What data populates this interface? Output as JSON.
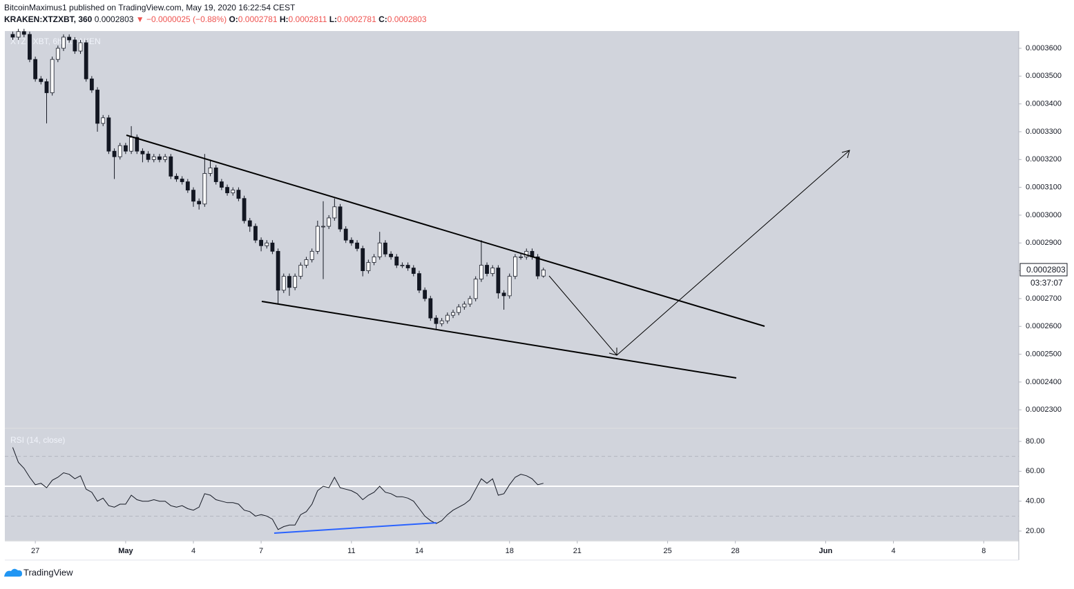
{
  "header": {
    "publisher_line": "BitcoinMaximus1 published on TradingView.com, May 19, 2020 16:22:54 CEST",
    "symbol": "KRAKEN:XTZXBT, 360",
    "last": "0.0002803",
    "change": "▼ −0.0000025 (−0.88%)",
    "ohlc": [
      {
        "label": "O:",
        "value": "0.0002781"
      },
      {
        "label": "H:",
        "value": "0.0002811"
      },
      {
        "label": "L:",
        "value": "0.0002781"
      },
      {
        "label": "C:",
        "value": "0.0002803"
      }
    ],
    "last_price_tag": "0.0002803",
    "countdown": "03:37:07"
  },
  "brand": "TradingView",
  "chart_data": [
    {
      "type": "candlestick",
      "label": "XTZ / XBT, 6h, KRAKEN",
      "up_color": "#ffffff",
      "down_color": "#131722",
      "xlim": [
        -1.35,
        43.55
      ],
      "ylim": [
        0.0002236,
        0.0003662
      ],
      "yticks": [
        {
          "value": 0.00036,
          "label": "0.0003600"
        },
        {
          "value": 0.00035,
          "label": "0.0003500"
        },
        {
          "value": 0.00034,
          "label": "0.0003400"
        },
        {
          "value": 0.00033,
          "label": "0.0003300"
        },
        {
          "value": 0.00032,
          "label": "0.0003200"
        },
        {
          "value": 0.00031,
          "label": "0.0003100"
        },
        {
          "value": 0.0003,
          "label": "0.0003000"
        },
        {
          "value": 0.00029,
          "label": "0.0002900"
        },
        {
          "value": 0.00028,
          "label": "0.0002800"
        },
        {
          "value": 0.00027,
          "label": "0.0002700"
        },
        {
          "value": 0.00026,
          "label": "0.0002600"
        },
        {
          "value": 0.00025,
          "label": "0.0002500"
        },
        {
          "value": 0.00024,
          "label": "0.0002400"
        },
        {
          "value": 0.00023,
          "label": "0.0002300"
        }
      ],
      "x": [
        -1,
        -0.75,
        -0.5,
        -0.25,
        0,
        0.25,
        0.5,
        0.75,
        1,
        1.25,
        1.5,
        1.75,
        2,
        2.25,
        2.5,
        2.75,
        3,
        3.25,
        3.5,
        3.75,
        4,
        4.25,
        4.5,
        4.75,
        5,
        5.25,
        5.5,
        5.75,
        6,
        6.25,
        6.5,
        6.75,
        7,
        7.25,
        7.5,
        7.75,
        8,
        8.25,
        8.5,
        8.75,
        9,
        9.25,
        9.5,
        9.75,
        10,
        10.25,
        10.5,
        10.75,
        11,
        11.25,
        11.5,
        11.75,
        12,
        12.25,
        12.5,
        12.75,
        13,
        13.25,
        13.5,
        13.75,
        14,
        14.25,
        14.5,
        14.75,
        15,
        15.25,
        15.5,
        15.75,
        16,
        16.25,
        16.5,
        16.75,
        17,
        17.25,
        17.5,
        17.75,
        18,
        18.25,
        18.5,
        18.75,
        19,
        19.25,
        19.5,
        19.75,
        20,
        20.25,
        20.5,
        20.75,
        21,
        21.25,
        21.5,
        21.75,
        22,
        22.25,
        22.5
      ],
      "open": [
        0.000365,
        0.000364,
        0.000366,
        0.000365,
        0.000356,
        0.000349,
        0.000348,
        0.000344,
        0.000356,
        0.00036,
        0.000364,
        0.000363,
        0.000359,
        0.000362,
        0.000349,
        0.000345,
        0.000333,
        0.000335,
        0.000323,
        0.000321,
        0.000325,
        0.000323,
        0.000328,
        0.000323,
        0.000322,
        0.00032,
        0.000321,
        0.00032,
        0.000321,
        0.000314,
        0.000313,
        0.000312,
        0.000309,
        0.000305,
        0.000304,
        0.000315,
        0.000317,
        0.000312,
        0.00031,
        0.000308,
        0.000309,
        0.000306,
        0.000298,
        0.000296,
        0.000291,
        0.000289,
        0.00029,
        0.000287,
        0.000273,
        0.000278,
        0.000274,
        0.000278,
        0.000282,
        0.000284,
        0.000287,
        0.000296,
        0.000296,
        0.000299,
        0.000303,
        0.000295,
        0.000291,
        0.00029,
        0.000288,
        0.00028,
        0.000283,
        0.000285,
        0.00029,
        0.000286,
        0.000285,
        0.000282,
        0.000282,
        0.000281,
        0.000279,
        0.000273,
        0.00027,
        0.000263,
        0.000261,
        0.000262,
        0.000264,
        0.000265,
        0.000267,
        0.000268,
        0.00027,
        0.000277,
        0.000282,
        0.000279,
        0.000281,
        0.000272,
        0.000271,
        0.000278,
        0.000285,
        0.000285,
        0.000287,
        0.000285,
        0.0002781
      ],
      "high": [
        0.000366,
        0.000367,
        0.000367,
        0.000366,
        0.000357,
        0.00035,
        0.000349,
        0.000357,
        0.000361,
        0.000365,
        0.000365,
        0.000364,
        0.000363,
        0.000363,
        0.00035,
        0.000346,
        0.000336,
        0.000336,
        0.000324,
        0.000326,
        0.000326,
        0.000332,
        0.000329,
        0.000324,
        0.000323,
        0.000322,
        0.000322,
        0.000322,
        0.000322,
        0.000315,
        0.000314,
        0.000313,
        0.00031,
        0.000306,
        0.000322,
        0.00032,
        0.000318,
        0.000313,
        0.000311,
        0.00031,
        0.00031,
        0.000307,
        0.000299,
        0.000297,
        0.000292,
        0.000291,
        0.000291,
        0.000288,
        0.000279,
        0.000279,
        0.000279,
        0.000283,
        0.000285,
        0.000288,
        0.000298,
        0.000305,
        0.0003,
        0.000306,
        0.000304,
        0.000296,
        0.000292,
        0.000291,
        0.000289,
        0.000284,
        0.000286,
        0.000294,
        0.000291,
        0.000287,
        0.000286,
        0.000283,
        0.000283,
        0.000282,
        0.00028,
        0.000274,
        0.000271,
        0.000264,
        0.000263,
        0.000265,
        0.000266,
        0.000268,
        0.000269,
        0.000271,
        0.000278,
        0.000291,
        0.000283,
        0.000282,
        0.000282,
        0.000273,
        0.000279,
        0.000286,
        0.000286,
        0.000288,
        0.000288,
        0.000286,
        0.0002811
      ],
      "low": [
        0.000363,
        0.000363,
        0.000364,
        0.000355,
        0.000348,
        0.000347,
        0.000333,
        0.000343,
        0.000355,
        0.000359,
        0.000362,
        0.000358,
        0.000358,
        0.000348,
        0.000344,
        0.00033,
        0.000332,
        0.000322,
        0.000313,
        0.00032,
        0.000322,
        0.000322,
        0.000322,
        0.000319,
        0.000319,
        0.000319,
        0.000319,
        0.000319,
        0.000313,
        0.000312,
        0.000311,
        0.000308,
        0.000303,
        0.000302,
        0.000303,
        0.000314,
        0.000311,
        0.000309,
        0.000307,
        0.000307,
        0.000305,
        0.000297,
        0.000294,
        0.00029,
        0.000287,
        0.000288,
        0.000286,
        0.000268,
        0.000272,
        0.000271,
        0.000273,
        0.000277,
        0.000281,
        0.000283,
        0.000286,
        0.000277,
        0.000295,
        0.000298,
        0.000294,
        0.00029,
        0.000289,
        0.000287,
        0.000278,
        0.000279,
        0.000282,
        0.000284,
        0.000285,
        0.000284,
        0.000281,
        0.000281,
        0.00028,
        0.000278,
        0.000272,
        0.000269,
        0.000262,
        0.000259,
        0.00026,
        0.000261,
        0.000263,
        0.000264,
        0.000266,
        0.000267,
        0.000269,
        0.000276,
        0.000278,
        0.000278,
        0.00027,
        0.000266,
        0.00027,
        0.000277,
        0.000284,
        0.000284,
        0.000284,
        0.000277,
        0.0002775
      ],
      "close": [
        0.000364,
        0.000366,
        0.000365,
        0.000356,
        0.000349,
        0.000348,
        0.000344,
        0.000356,
        0.00036,
        0.000364,
        0.000363,
        0.000359,
        0.000362,
        0.000349,
        0.000345,
        0.000333,
        0.000335,
        0.000323,
        0.000321,
        0.000325,
        0.000323,
        0.000328,
        0.000323,
        0.000322,
        0.00032,
        0.000321,
        0.00032,
        0.000321,
        0.000314,
        0.000313,
        0.000312,
        0.000309,
        0.000305,
        0.000304,
        0.000315,
        0.000317,
        0.000312,
        0.00031,
        0.000308,
        0.000309,
        0.000306,
        0.000298,
        0.000296,
        0.000291,
        0.000289,
        0.00029,
        0.000287,
        0.000273,
        0.000278,
        0.000274,
        0.000278,
        0.000282,
        0.000284,
        0.000287,
        0.000296,
        0.000296,
        0.000299,
        0.000303,
        0.000295,
        0.000291,
        0.00029,
        0.000288,
        0.00028,
        0.000283,
        0.000285,
        0.00029,
        0.000286,
        0.000285,
        0.000282,
        0.000282,
        0.000281,
        0.000279,
        0.000273,
        0.00027,
        0.000263,
        0.000261,
        0.000262,
        0.000264,
        0.000265,
        0.000267,
        0.000268,
        0.00027,
        0.000277,
        0.000282,
        0.000279,
        0.000281,
        0.000272,
        0.000271,
        0.000278,
        0.000285,
        0.000285,
        0.000287,
        0.000285,
        0.0002781,
        0.0002803
      ]
    },
    {
      "type": "line",
      "title": "RSI (14, close)",
      "color": "#131722",
      "xlim": [
        -1.35,
        43.55
      ],
      "ylim": [
        14.0,
        88.3
      ],
      "yticks": [
        {
          "value": 80,
          "label": "80.00"
        },
        {
          "value": 60,
          "label": "60.00"
        },
        {
          "value": 40,
          "label": "40.00"
        },
        {
          "value": 20,
          "label": "20.00"
        }
      ],
      "levels": [
        70,
        30
      ],
      "hline": 50,
      "xticks": [
        {
          "value": 0,
          "label": "27"
        },
        {
          "value": 4,
          "label": "May"
        },
        {
          "value": 7,
          "label": "4"
        },
        {
          "value": 10,
          "label": "7"
        },
        {
          "value": 14,
          "label": "11"
        },
        {
          "value": 17,
          "label": "14"
        },
        {
          "value": 21,
          "label": "18"
        },
        {
          "value": 24,
          "label": "21"
        },
        {
          "value": 28,
          "label": "25"
        },
        {
          "value": 31,
          "label": "28"
        },
        {
          "value": 35,
          "label": "Jun"
        },
        {
          "value": 38,
          "label": "4"
        },
        {
          "value": 42,
          "label": "8"
        }
      ],
      "x": [
        -1,
        -0.75,
        -0.5,
        -0.25,
        0,
        0.25,
        0.5,
        0.75,
        1,
        1.25,
        1.5,
        1.75,
        2,
        2.25,
        2.5,
        2.75,
        3,
        3.25,
        3.5,
        3.75,
        4,
        4.25,
        4.5,
        4.75,
        5,
        5.25,
        5.5,
        5.75,
        6,
        6.25,
        6.5,
        6.75,
        7,
        7.25,
        7.5,
        7.75,
        8,
        8.25,
        8.5,
        8.75,
        9,
        9.25,
        9.5,
        9.75,
        10,
        10.25,
        10.5,
        10.75,
        11,
        11.25,
        11.5,
        11.75,
        12,
        12.25,
        12.5,
        12.75,
        13,
        13.25,
        13.5,
        13.75,
        14,
        14.25,
        14.5,
        14.75,
        15,
        15.25,
        15.5,
        15.75,
        16,
        16.25,
        16.5,
        16.75,
        17,
        17.25,
        17.5,
        17.75,
        18,
        18.25,
        18.5,
        18.75,
        19,
        19.25,
        19.5,
        19.75,
        20,
        20.25,
        20.5,
        20.75,
        21,
        21.25,
        21.5,
        21.75,
        22,
        22.25,
        22.5
      ],
      "values": [
        76,
        66,
        62,
        56,
        51,
        52,
        49,
        54,
        56,
        59,
        58,
        55,
        57,
        48,
        46,
        40,
        42,
        37,
        36,
        38,
        38,
        44,
        41,
        40,
        40,
        41,
        40,
        40,
        37,
        36,
        37,
        35,
        34,
        36,
        45,
        44,
        41,
        40,
        39,
        39,
        38,
        34,
        33,
        30,
        31,
        30,
        28,
        21,
        23,
        24,
        24,
        31,
        33,
        38,
        47,
        50,
        49,
        56,
        49,
        48,
        47,
        45,
        41,
        44,
        46,
        50,
        46,
        45,
        43,
        43,
        42,
        40,
        35,
        30,
        27,
        25,
        27,
        31,
        34,
        36,
        38,
        41,
        48,
        55,
        52,
        55,
        44,
        45,
        51,
        56,
        58,
        57,
        55,
        51,
        52
      ]
    }
  ]
}
